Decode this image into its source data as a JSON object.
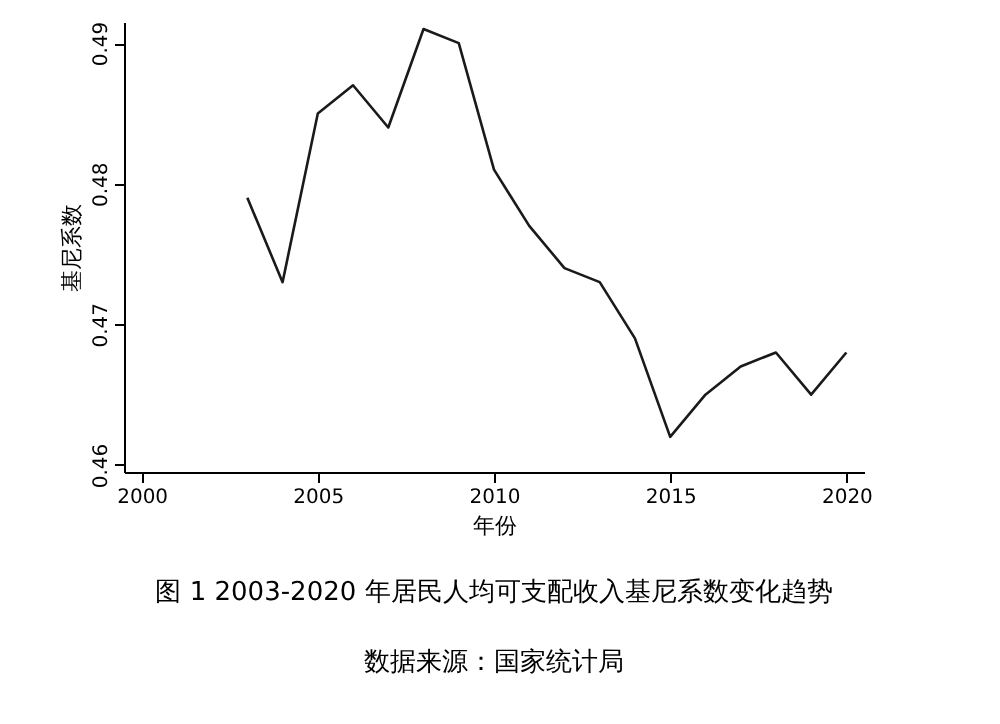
{
  "chart_data": {
    "type": "line",
    "xlabel": "年份",
    "ylabel": "基尼系数",
    "x": [
      2003,
      2004,
      2005,
      2006,
      2007,
      2008,
      2009,
      2010,
      2011,
      2012,
      2013,
      2014,
      2015,
      2016,
      2017,
      2018,
      2019,
      2020
    ],
    "series": [
      {
        "color": "#1a1a1a",
        "values": [
          0.479,
          0.473,
          0.485,
          0.487,
          0.484,
          0.491,
          0.49,
          0.481,
          0.477,
          0.474,
          0.473,
          0.469,
          0.462,
          0.465,
          0.467,
          0.468,
          0.465,
          0.468
        ]
      }
    ],
    "xlim": [
      1999.5,
      2020.5
    ],
    "xticks": [
      2000,
      2005,
      2010,
      2015,
      2020
    ],
    "ylim": [
      0.4595,
      0.4915
    ],
    "yticks": [
      0.46,
      0.47,
      0.48,
      0.49
    ],
    "grid": false,
    "marker": "none",
    "line_style": "solid",
    "annotations": [
      "图 1   2003-2020 年居民人均可支配收入基尼系数变化趋势",
      "数据来源：国家统计局"
    ]
  }
}
